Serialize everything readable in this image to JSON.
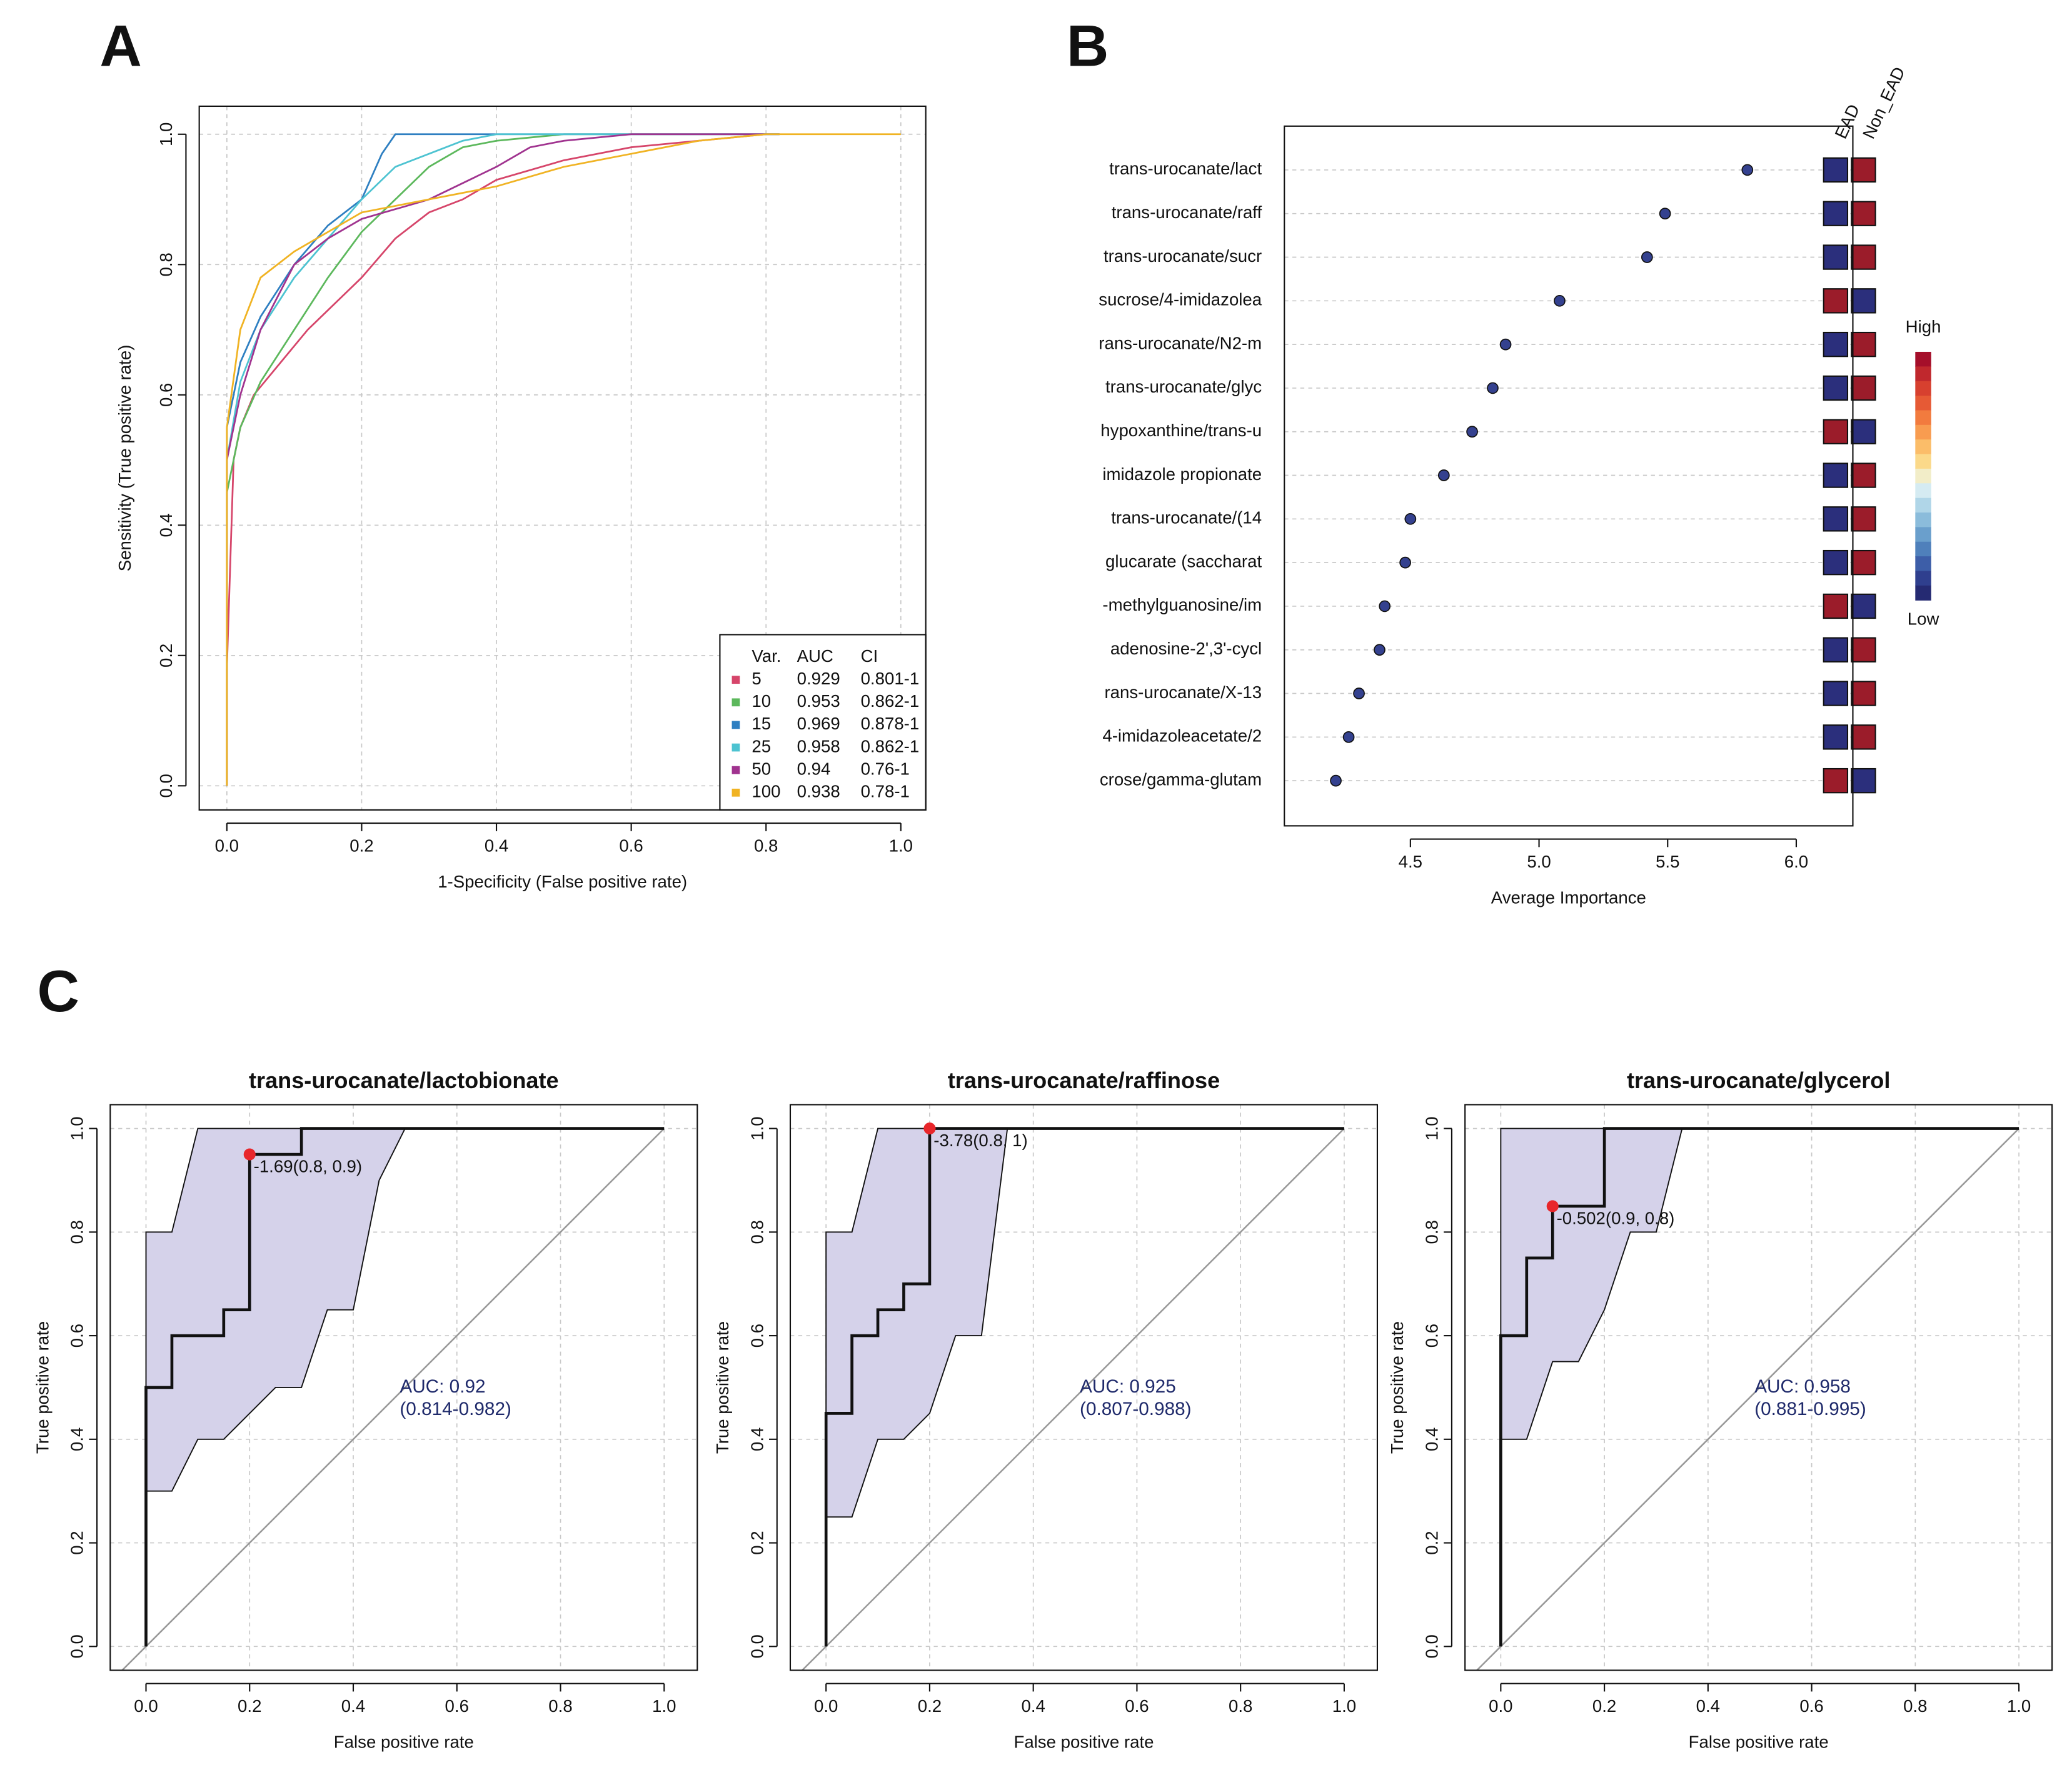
{
  "chart_data": [
    {
      "type": "line",
      "panel": "A",
      "xlabel": "1-Specificity (False positive rate)",
      "ylabel": "Sensitivity (True positive rate)",
      "xlim": [
        -0.041,
        1.037
      ],
      "ylim": [
        -0.037,
        1.043
      ],
      "xticks": [
        {
          "value": 0,
          "label": "0.0"
        },
        0.2,
        0.4,
        0.6,
        0.8,
        {
          "value": 1,
          "label": "1.0"
        }
      ],
      "yticks": [
        {
          "value": 0,
          "label": "0.0"
        },
        0.2,
        0.4,
        0.6,
        0.8,
        {
          "value": 1,
          "label": "1.0"
        }
      ],
      "grid": true,
      "legend_header": [
        "Var.",
        "AUC",
        "CI"
      ],
      "series": [
        {
          "name": "5",
          "color": "#d6456a",
          "auc": 0.929,
          "ci": "0.801-1",
          "x": [
            0,
            0,
            0.01,
            0.02,
            0.04,
            0.08,
            0.12,
            0.15,
            0.2,
            0.25,
            0.3,
            0.35,
            0.4,
            0.5,
            0.6,
            0.7,
            0.8
          ],
          "values": [
            0,
            0.18,
            0.5,
            0.55,
            0.6,
            0.65,
            0.7,
            0.73,
            0.78,
            0.84,
            0.88,
            0.9,
            0.93,
            0.96,
            0.98,
            0.99,
            1
          ]
        },
        {
          "name": "10",
          "color": "#5cb85c",
          "auc": 0.953,
          "ci": "0.862-1",
          "x": [
            0,
            0,
            0.02,
            0.05,
            0.1,
            0.15,
            0.2,
            0.25,
            0.3,
            0.35,
            0.4,
            0.5,
            0.82
          ],
          "values": [
            0,
            0.45,
            0.55,
            0.62,
            0.7,
            0.78,
            0.85,
            0.9,
            0.95,
            0.98,
            0.99,
            1,
            1
          ]
        },
        {
          "name": "15",
          "color": "#2e7fc1",
          "auc": 0.969,
          "ci": "0.878-1",
          "x": [
            0,
            0,
            0.02,
            0.05,
            0.1,
            0.15,
            0.2,
            0.23,
            0.25,
            0.82
          ],
          "values": [
            0,
            0.55,
            0.65,
            0.72,
            0.8,
            0.86,
            0.9,
            0.97,
            1,
            1
          ]
        },
        {
          "name": "25",
          "color": "#4dc3d1",
          "auc": 0.958,
          "ci": "0.862-1",
          "x": [
            0,
            0,
            0.02,
            0.05,
            0.1,
            0.15,
            0.2,
            0.25,
            0.3,
            0.35,
            0.4,
            0.82
          ],
          "values": [
            0,
            0.5,
            0.62,
            0.7,
            0.78,
            0.84,
            0.9,
            0.95,
            0.97,
            0.99,
            1,
            1
          ]
        },
        {
          "name": "50",
          "color": "#a0338f",
          "auc": 0.94,
          "ci": "0.76-1",
          "x": [
            0,
            0,
            0.02,
            0.05,
            0.1,
            0.15,
            0.2,
            0.3,
            0.4,
            0.45,
            0.5,
            0.6,
            0.82
          ],
          "values": [
            0,
            0.5,
            0.6,
            0.7,
            0.8,
            0.84,
            0.87,
            0.9,
            0.95,
            0.98,
            0.99,
            1,
            1
          ]
        },
        {
          "name": "100",
          "color": "#f0b323",
          "auc": 0.938,
          "ci": "0.78-1",
          "x": [
            0,
            0,
            0.02,
            0.05,
            0.1,
            0.15,
            0.2,
            0.3,
            0.4,
            0.5,
            0.6,
            0.7,
            0.8,
            1
          ],
          "values": [
            0,
            0.55,
            0.7,
            0.78,
            0.82,
            0.85,
            0.88,
            0.9,
            0.92,
            0.95,
            0.97,
            0.99,
            1,
            1
          ]
        }
      ]
    },
    {
      "type": "dot",
      "panel": "B",
      "xlabel": "Average Importance",
      "xlim": [
        4.01,
        6.22
      ],
      "xticks": [
        4.5,
        {
          "value": 5,
          "label": "5.0"
        },
        5.5,
        {
          "value": 6,
          "label": "6.0"
        }
      ],
      "grid": true,
      "dot_color": "#34418f",
      "categories": [
        "trans-urocanate/lact",
        "trans-urocanate/raff",
        "trans-urocanate/sucr",
        "sucrose/4-imidazolea",
        "rans-urocanate/N2-m",
        "trans-urocanate/glyc",
        "hypoxanthine/trans-u",
        "imidazole propionate",
        "trans-urocanate/(14",
        "glucarate (saccharat",
        "-methylguanosine/im",
        "adenosine-2',3'-cycl",
        "rans-urocanate/X-13",
        "4-imidazoleacetate/2",
        "crose/gamma-glutam"
      ],
      "values": [
        5.81,
        5.49,
        5.42,
        5.08,
        4.87,
        4.82,
        4.74,
        4.63,
        4.5,
        4.48,
        4.4,
        4.38,
        4.3,
        4.26,
        4.21
      ],
      "heat_columns": [
        "EAD",
        "Non_EAD"
      ],
      "heat_colors": [
        [
          "#2b2f7c",
          "#9b1c2a"
        ],
        [
          "#2b2f7c",
          "#9b1c2a"
        ],
        [
          "#2b2f7c",
          "#9b1c2a"
        ],
        [
          "#9b1c2a",
          "#2b2f7c"
        ],
        [
          "#2b2f7c",
          "#9b1c2a"
        ],
        [
          "#2b2f7c",
          "#9b1c2a"
        ],
        [
          "#9b1c2a",
          "#2b2f7c"
        ],
        [
          "#2b2f7c",
          "#9b1c2a"
        ],
        [
          "#2b2f7c",
          "#9b1c2a"
        ],
        [
          "#2b2f7c",
          "#9b1c2a"
        ],
        [
          "#9b1c2a",
          "#2b2f7c"
        ],
        [
          "#2b2f7c",
          "#9b1c2a"
        ],
        [
          "#2b2f7c",
          "#9b1c2a"
        ],
        [
          "#2b2f7c",
          "#9b1c2a"
        ],
        [
          "#9b1c2a",
          "#2b2f7c"
        ]
      ],
      "scale_high": "High",
      "scale_low": "Low",
      "scale_colors": [
        "#a50f2a",
        "#c0282d",
        "#d7402f",
        "#e65a35",
        "#f27b3e",
        "#f89c50",
        "#fbbd69",
        "#fbd98a",
        "#f2edc8",
        "#d5ebf2",
        "#b0d6e8",
        "#8bbcdb",
        "#6a9fcc",
        "#4f80bb",
        "#3d5ea8",
        "#2f3f8e",
        "#252a72"
      ]
    },
    {
      "type": "roc",
      "panel": "C",
      "title": "trans-urocanate/lactobionate",
      "xlabel": "False positive rate",
      "ylabel": "True positive rate",
      "xlim": [
        -0.069,
        1.064
      ],
      "ylim": [
        -0.046,
        1.046
      ],
      "xticks": [
        {
          "value": 0,
          "label": "0.0"
        },
        0.2,
        0.4,
        0.6,
        0.8,
        {
          "value": 1,
          "label": "1.0"
        }
      ],
      "yticks": [
        {
          "value": 0,
          "label": "0.0"
        },
        0.2,
        0.4,
        0.6,
        0.8,
        {
          "value": 1,
          "label": "1.0"
        }
      ],
      "grid": true,
      "x": [
        0,
        0,
        0.05,
        0.05,
        0.15,
        0.15,
        0.2,
        0.2,
        0.3,
        0.3,
        1
      ],
      "values": [
        0,
        0.5,
        0.5,
        0.6,
        0.6,
        0.65,
        0.65,
        0.95,
        0.95,
        1,
        1
      ],
      "ci_band": {
        "color": "#d5d2ea",
        "x": [
          0,
          0,
          0.05,
          0.1,
          0.5,
          0.45,
          0.4,
          0.35,
          0.3,
          0.25,
          0.15,
          0.1,
          0.05
        ],
        "values": [
          0.3,
          0.8,
          0.8,
          1,
          1,
          0.9,
          0.65,
          0.65,
          0.5,
          0.5,
          0.4,
          0.4,
          0.3
        ]
      },
      "best_point": {
        "x": 0.2,
        "y": 0.95,
        "label": "-1.69(0.8, 0.9)"
      },
      "auc_label": "AUC: 0.92",
      "auc_ci_label": "(0.814-0.982)"
    },
    {
      "type": "roc",
      "title": "trans-urocanate/raffinose",
      "xlabel": "False positive rate",
      "ylabel": "True positive rate",
      "xlim": [
        -0.069,
        1.064
      ],
      "ylim": [
        -0.046,
        1.046
      ],
      "xticks": [
        {
          "value": 0,
          "label": "0.0"
        },
        0.2,
        0.4,
        0.6,
        0.8,
        {
          "value": 1,
          "label": "1.0"
        }
      ],
      "yticks": [
        {
          "value": 0,
          "label": "0.0"
        },
        0.2,
        0.4,
        0.6,
        0.8,
        {
          "value": 1,
          "label": "1.0"
        }
      ],
      "grid": true,
      "x": [
        0,
        0,
        0.05,
        0.05,
        0.1,
        0.1,
        0.15,
        0.15,
        0.2,
        0.2,
        1
      ],
      "values": [
        0,
        0.45,
        0.45,
        0.6,
        0.6,
        0.65,
        0.65,
        0.7,
        0.7,
        1,
        1
      ],
      "ci_band": {
        "color": "#d5d2ea",
        "x": [
          0,
          0,
          0.05,
          0.1,
          0.35,
          0.3,
          0.25,
          0.2,
          0.15,
          0.1,
          0.05
        ],
        "values": [
          0.25,
          0.8,
          0.8,
          1,
          1,
          0.6,
          0.6,
          0.45,
          0.4,
          0.4,
          0.25
        ]
      },
      "best_point": {
        "x": 0.2,
        "y": 1,
        "label": "-3.78(0.8, 1)"
      },
      "auc_label": "AUC: 0.925",
      "auc_ci_label": "(0.807-0.988)"
    },
    {
      "type": "roc",
      "title": "trans-urocanate/glycerol",
      "xlabel": "False positive rate",
      "ylabel": "True positive rate",
      "xlim": [
        -0.069,
        1.064
      ],
      "ylim": [
        -0.046,
        1.046
      ],
      "xticks": [
        {
          "value": 0,
          "label": "0.0"
        },
        0.2,
        0.4,
        0.6,
        0.8,
        {
          "value": 1,
          "label": "1.0"
        }
      ],
      "yticks": [
        {
          "value": 0,
          "label": "0.0"
        },
        0.2,
        0.4,
        0.6,
        0.8,
        {
          "value": 1,
          "label": "1.0"
        }
      ],
      "grid": true,
      "x": [
        0,
        0,
        0.05,
        0.05,
        0.1,
        0.1,
        0.2,
        0.2,
        1
      ],
      "values": [
        0,
        0.6,
        0.6,
        0.75,
        0.75,
        0.85,
        0.85,
        1,
        1
      ],
      "ci_band": {
        "color": "#d5d2ea",
        "x": [
          0,
          0,
          0.35,
          0.3,
          0.25,
          0.2,
          0.15,
          0.1,
          0.05
        ],
        "values": [
          0.4,
          1,
          1,
          0.8,
          0.8,
          0.65,
          0.55,
          0.55,
          0.4
        ]
      },
      "best_point": {
        "x": 0.1,
        "y": 0.85,
        "label": "-0.502(0.9, 0.8)"
      },
      "auc_label": "AUC: 0.958",
      "auc_ci_label": "(0.881-0.995)"
    }
  ]
}
